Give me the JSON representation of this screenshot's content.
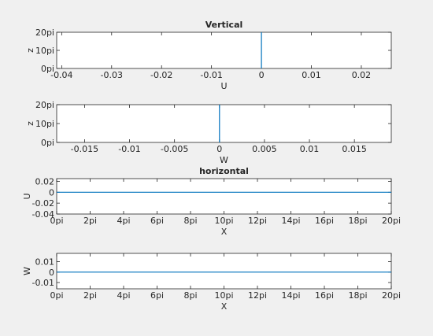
{
  "chart_data": [
    {
      "type": "line",
      "title": "Vertical",
      "xlabel": "U",
      "ylabel": "z",
      "xlim": [
        -0.041,
        0.026
      ],
      "ylim": [
        0,
        20
      ],
      "x_ticks": [
        -0.04,
        -0.03,
        -0.02,
        -0.01,
        0,
        0.01,
        0.02
      ],
      "x_tick_labels": [
        "-0.04",
        "-0.03",
        "-0.02",
        "-0.01",
        "0",
        "0.01",
        "0.02"
      ],
      "y_ticks": [
        0,
        10,
        20
      ],
      "y_tick_labels": [
        "0pi",
        "10pi",
        "20pi"
      ],
      "series": [
        {
          "x": [
            0,
            0
          ],
          "y": [
            0,
            20
          ],
          "color": "#0072BD"
        }
      ]
    },
    {
      "type": "line",
      "title": "",
      "xlabel": "W",
      "ylabel": "z",
      "xlim": [
        -0.0181,
        0.0191
      ],
      "ylim": [
        0,
        20
      ],
      "x_ticks": [
        -0.015,
        -0.01,
        -0.005,
        0,
        0.005,
        0.01,
        0.015
      ],
      "x_tick_labels": [
        "-0.015",
        "-0.01",
        "-0.005",
        "0",
        "0.005",
        "0.01",
        "0.015"
      ],
      "y_ticks": [
        0,
        10,
        20
      ],
      "y_tick_labels": [
        "0pi",
        "10pi",
        "20pi"
      ],
      "series": [
        {
          "x": [
            0,
            0
          ],
          "y": [
            0,
            20
          ],
          "color": "#0072BD"
        }
      ]
    },
    {
      "type": "line",
      "title": "horizontal",
      "xlabel": "X",
      "ylabel": "U",
      "xlim": [
        0,
        20
      ],
      "ylim": [
        -0.04,
        0.025
      ],
      "x_ticks": [
        0,
        2,
        4,
        6,
        8,
        10,
        12,
        14,
        16,
        18,
        20
      ],
      "x_tick_labels": [
        "0pi",
        "2pi",
        "4pi",
        "6pi",
        "8pi",
        "10pi",
        "12pi",
        "14pi",
        "16pi",
        "18pi",
        "20pi"
      ],
      "y_ticks": [
        0.02,
        0,
        -0.02,
        -0.04
      ],
      "y_tick_labels": [
        "0.02",
        "0",
        "-0.02",
        "-0.04"
      ],
      "series": [
        {
          "x": [
            0,
            20
          ],
          "y": [
            0,
            0
          ],
          "color": "#0072BD"
        }
      ]
    },
    {
      "type": "line",
      "title": "",
      "xlabel": "X",
      "ylabel": "W",
      "xlim": [
        0,
        20
      ],
      "ylim": [
        -0.016,
        0.018
      ],
      "x_ticks": [
        0,
        2,
        4,
        6,
        8,
        10,
        12,
        14,
        16,
        18,
        20
      ],
      "x_tick_labels": [
        "0pi",
        "2pi",
        "4pi",
        "6pi",
        "8pi",
        "10pi",
        "12pi",
        "14pi",
        "16pi",
        "18pi",
        "20pi"
      ],
      "y_ticks": [
        0.01,
        0,
        -0.01
      ],
      "y_tick_labels": [
        "0.01",
        "0",
        "-0.01"
      ],
      "series": [
        {
          "x": [
            0,
            20
          ],
          "y": [
            0,
            0
          ],
          "color": "#0072BD"
        }
      ]
    }
  ]
}
